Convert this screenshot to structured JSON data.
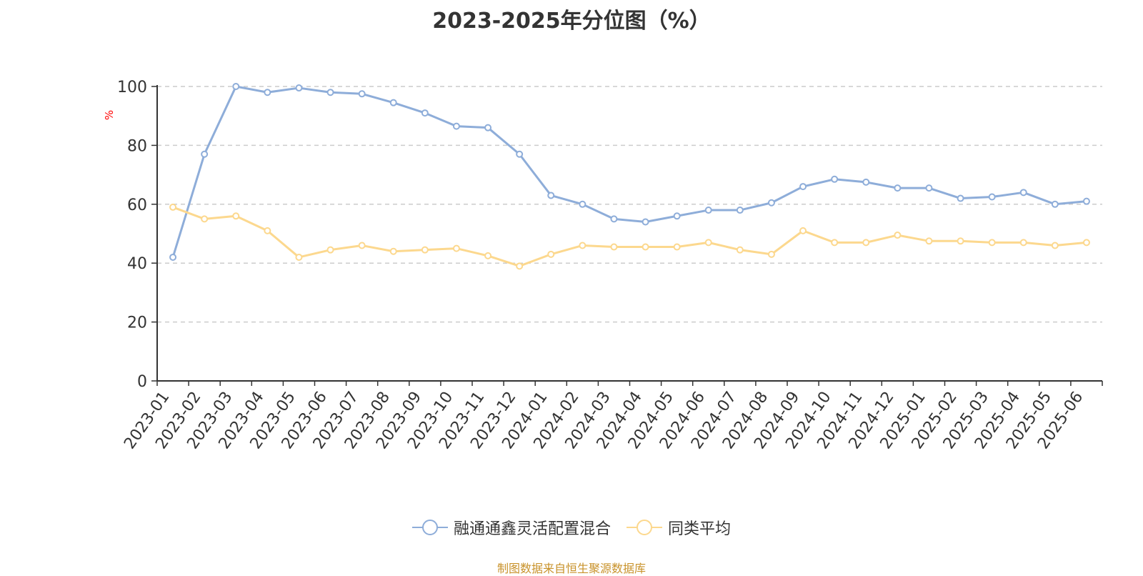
{
  "chart_data": {
    "type": "line",
    "title": "2023-2025年分位图（%）",
    "ylabel": "%",
    "xlabel": "",
    "ylim": [
      0,
      100
    ],
    "yticks": [
      0,
      20,
      40,
      60,
      80,
      100
    ],
    "grid": true,
    "legend_position": "bottom",
    "categories": [
      "2023-01",
      "2023-02",
      "2023-03",
      "2023-04",
      "2023-05",
      "2023-06",
      "2023-07",
      "2023-08",
      "2023-09",
      "2023-10",
      "2023-11",
      "2023-12",
      "2024-01",
      "2024-02",
      "2024-03",
      "2024-04",
      "2024-05",
      "2024-06",
      "2024-07",
      "2024-08",
      "2024-09",
      "2024-10",
      "2024-11",
      "2024-12",
      "2025-01",
      "2025-02",
      "2025-03",
      "2025-04",
      "2025-05",
      "2025-06"
    ],
    "series": [
      {
        "name": "融通通鑫灵活配置混合",
        "color": "#8eadd9",
        "values": [
          42,
          77,
          100,
          98,
          99.5,
          98,
          97.5,
          94.5,
          91,
          86.5,
          86,
          77,
          63,
          60,
          55,
          54,
          56,
          58,
          58,
          60.5,
          66,
          68.5,
          67.5,
          65.5,
          65.5,
          62,
          62.5,
          64,
          60,
          61
        ]
      },
      {
        "name": "同类平均",
        "color": "#fcd88e",
        "values": [
          59,
          55,
          56,
          51,
          42,
          44.5,
          46,
          44,
          44.5,
          45,
          42.5,
          39,
          43,
          46,
          45.5,
          45.5,
          45.5,
          47,
          44.5,
          43,
          51,
          47,
          47,
          49.5,
          47.5,
          47.5,
          47,
          47,
          46,
          47
        ]
      }
    ]
  },
  "footer": {
    "source": "制图数据来自恒生聚源数据库"
  }
}
